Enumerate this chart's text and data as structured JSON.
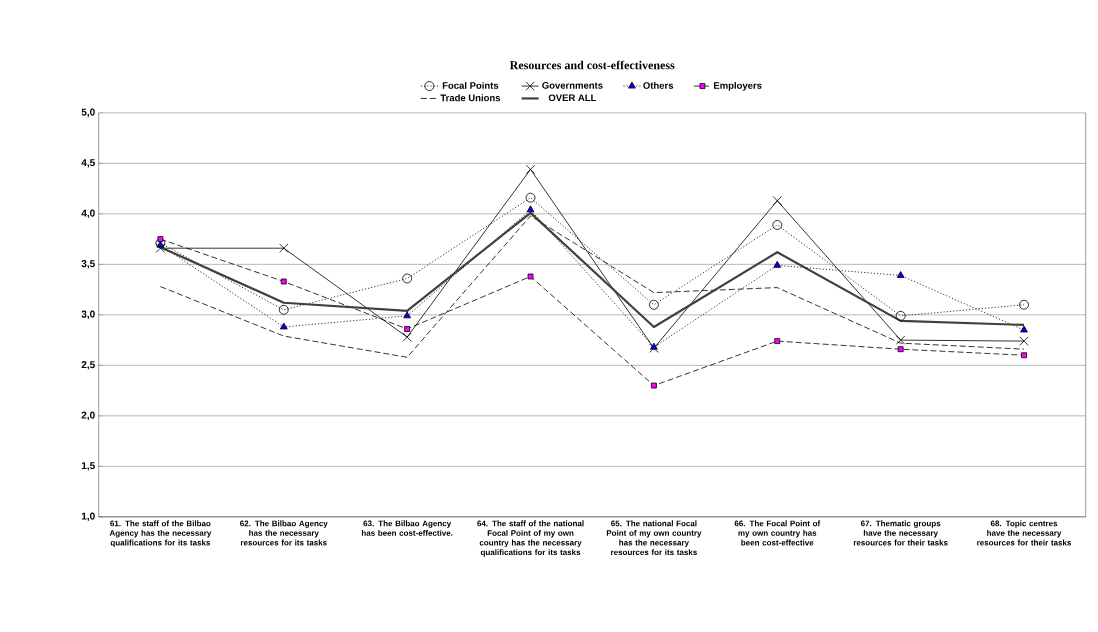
{
  "chart_data": {
    "type": "line",
    "title": "Resources and cost-effectiveness",
    "categories": [
      "61. The staff of the Bilbao Agency has the necessary qualifications for its tasks",
      "62. The Bilbao Agency has the necessary resources for its tasks",
      "63. The Bilbao Agency has been cost-effective.",
      "64. The staff of the national Focal Point of my own country has the necessary qualifications for its tasks",
      "65. The national Focal Point of my own country has the necessary resources for its tasks",
      "66. The Focal Point of my own country has been cost-effective",
      "67. Thematic groups have the necessary resources for their tasks",
      "68. Topic centres have the necessary resources for their tasks"
    ],
    "series": [
      {
        "name": "Focal Points",
        "color": "#000000",
        "marker": "circle",
        "line_style": "dotted",
        "values": [
          3.71,
          3.05,
          3.36,
          4.16,
          3.1,
          3.89,
          2.99,
          3.1
        ]
      },
      {
        "name": "Governments",
        "color": "#000000",
        "marker": "cross",
        "line_style": "solid",
        "values": [
          3.66,
          3.66,
          2.78,
          4.44,
          2.67,
          4.13,
          2.75,
          2.74
        ]
      },
      {
        "name": "Others",
        "color": "#0000ff",
        "marker": "triangle",
        "line_style": "dotted",
        "values": [
          3.69,
          2.88,
          2.99,
          4.04,
          2.68,
          3.49,
          3.39,
          2.85
        ]
      },
      {
        "name": "Employers",
        "color": "#ff00ff",
        "marker": "square",
        "line_style": "dashed",
        "values": [
          3.75,
          3.33,
          2.86,
          3.38,
          2.3,
          2.74,
          2.66,
          2.6
        ]
      },
      {
        "name": "Trade Unions",
        "color": "#000000",
        "marker": "none",
        "line_style": "dashed",
        "values": [
          3.28,
          2.79,
          2.58,
          3.98,
          3.22,
          3.27,
          2.72,
          2.66
        ]
      },
      {
        "name": "OVER ALL",
        "color": "#404040",
        "marker": "none",
        "line_style": "solid",
        "values": [
          3.67,
          3.12,
          3.04,
          4.01,
          2.88,
          3.62,
          2.94,
          2.9
        ]
      }
    ],
    "ylim": [
      1,
      5
    ],
    "yticks": [
      {
        "value": 1,
        "label": "1,0"
      },
      {
        "value": 1.5,
        "label": "1,5"
      },
      {
        "value": 2,
        "label": "2,0"
      },
      {
        "value": 2.5,
        "label": "2,5"
      },
      {
        "value": 3,
        "label": "3,0"
      },
      {
        "value": 3.5,
        "label": "3,5"
      },
      {
        "value": 4,
        "label": "4,0"
      },
      {
        "value": 4.5,
        "label": "4,5"
      },
      {
        "value": 5,
        "label": "5,0"
      }
    ],
    "grid": "y",
    "legend": "top"
  }
}
